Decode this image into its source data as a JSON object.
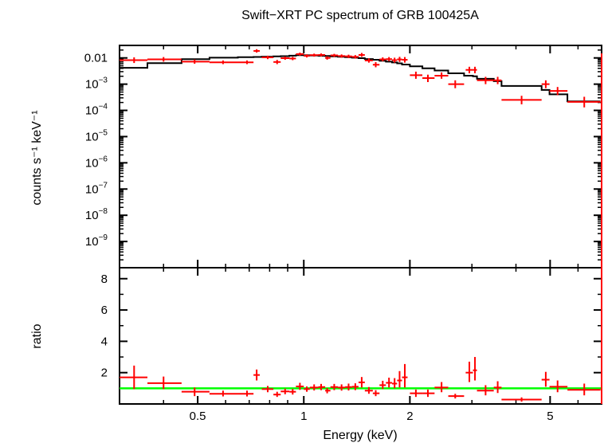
{
  "chart_data": [
    {
      "type": "scatter",
      "title": "Swift−XRT PC spectrum of GRB 100425A",
      "ylabel": "counts s⁻¹ keV⁻¹",
      "xscale": "log",
      "yscale": "log",
      "xlim": [
        0.3,
        7.0
      ],
      "ylim": [
        1e-10,
        0.03
      ],
      "x_ticks": [
        {
          "value": 0.5,
          "label": "0.5"
        },
        {
          "value": 1,
          "label": "1"
        },
        {
          "value": 2,
          "label": "2"
        },
        {
          "value": 5,
          "label": "5"
        }
      ],
      "y_ticks": [
        {
          "value": 0.01,
          "label": "0.01"
        },
        {
          "value": 0.001,
          "base": "10",
          "exp": "−3"
        },
        {
          "value": 0.0001,
          "base": "10",
          "exp": "−4"
        },
        {
          "value": 1e-05,
          "base": "10",
          "exp": "−5"
        },
        {
          "value": 1e-06,
          "base": "10",
          "exp": "−6"
        },
        {
          "value": 1e-07,
          "base": "10",
          "exp": "−7"
        },
        {
          "value": 1e-08,
          "base": "10",
          "exp": "−8"
        },
        {
          "value": 1e-09,
          "base": "10",
          "exp": "−9"
        }
      ],
      "series": [
        {
          "color": "#ff0000",
          "points": [
            {
              "x": 0.33,
              "x_lo": 0.3,
              "x_hi": 0.36,
              "y": 0.0082,
              "y_lo": 0.0064,
              "y_hi": 0.0105
            },
            {
              "x": 0.4,
              "x_lo": 0.36,
              "x_hi": 0.45,
              "y": 0.0088,
              "y_lo": 0.0072,
              "y_hi": 0.0108
            },
            {
              "x": 0.49,
              "x_lo": 0.45,
              "x_hi": 0.54,
              "y": 0.0072,
              "y_lo": 0.006,
              "y_hi": 0.0087
            },
            {
              "x": 0.59,
              "x_lo": 0.54,
              "x_hi": 0.65,
              "y": 0.0068,
              "y_lo": 0.0058,
              "y_hi": 0.008
            },
            {
              "x": 0.69,
              "x_lo": 0.65,
              "x_hi": 0.72,
              "y": 0.0068,
              "y_lo": 0.0058,
              "y_hi": 0.008
            },
            {
              "x": 0.735,
              "x_lo": 0.72,
              "x_hi": 0.75,
              "y": 0.0185,
              "y_lo": 0.016,
              "y_hi": 0.0215
            },
            {
              "x": 0.79,
              "x_lo": 0.76,
              "x_hi": 0.82,
              "y": 0.0105,
              "y_lo": 0.009,
              "y_hi": 0.0122
            },
            {
              "x": 0.84,
              "x_lo": 0.82,
              "x_hi": 0.86,
              "y": 0.007,
              "y_lo": 0.0058,
              "y_hi": 0.0084
            },
            {
              "x": 0.885,
              "x_lo": 0.86,
              "x_hi": 0.91,
              "y": 0.0098,
              "y_lo": 0.0085,
              "y_hi": 0.0113
            },
            {
              "x": 0.93,
              "x_lo": 0.91,
              "x_hi": 0.95,
              "y": 0.0095,
              "y_lo": 0.0082,
              "y_hi": 0.011
            },
            {
              "x": 0.975,
              "x_lo": 0.95,
              "x_hi": 1.0,
              "y": 0.014,
              "y_lo": 0.0122,
              "y_hi": 0.016
            },
            {
              "x": 1.02,
              "x_lo": 1.0,
              "x_hi": 1.04,
              "y": 0.012,
              "y_lo": 0.0104,
              "y_hi": 0.0138
            },
            {
              "x": 1.07,
              "x_lo": 1.04,
              "x_hi": 1.1,
              "y": 0.0128,
              "y_lo": 0.0112,
              "y_hi": 0.0146
            },
            {
              "x": 1.12,
              "x_lo": 1.1,
              "x_hi": 1.15,
              "y": 0.013,
              "y_lo": 0.0114,
              "y_hi": 0.0148
            },
            {
              "x": 1.165,
              "x_lo": 1.15,
              "x_hi": 1.19,
              "y": 0.01,
              "y_lo": 0.0086,
              "y_hi": 0.0116
            },
            {
              "x": 1.22,
              "x_lo": 1.19,
              "x_hi": 1.25,
              "y": 0.0125,
              "y_lo": 0.0109,
              "y_hi": 0.0143
            },
            {
              "x": 1.28,
              "x_lo": 1.25,
              "x_hi": 1.31,
              "y": 0.0118,
              "y_lo": 0.0102,
              "y_hi": 0.0136
            },
            {
              "x": 1.34,
              "x_lo": 1.31,
              "x_hi": 1.37,
              "y": 0.0115,
              "y_lo": 0.0099,
              "y_hi": 0.0133
            },
            {
              "x": 1.4,
              "x_lo": 1.37,
              "x_hi": 1.43,
              "y": 0.011,
              "y_lo": 0.0094,
              "y_hi": 0.0128
            },
            {
              "x": 1.46,
              "x_lo": 1.43,
              "x_hi": 1.49,
              "y": 0.013,
              "y_lo": 0.011,
              "y_hi": 0.0155
            },
            {
              "x": 1.53,
              "x_lo": 1.49,
              "x_hi": 1.57,
              "y": 0.008,
              "y_lo": 0.0066,
              "y_hi": 0.0097
            },
            {
              "x": 1.6,
              "x_lo": 1.57,
              "x_hi": 1.64,
              "y": 0.0055,
              "y_lo": 0.0044,
              "y_hi": 0.0069
            },
            {
              "x": 1.675,
              "x_lo": 1.64,
              "x_hi": 1.71,
              "y": 0.0088,
              "y_lo": 0.0074,
              "y_hi": 0.0105
            },
            {
              "x": 1.745,
              "x_lo": 1.71,
              "x_hi": 1.78,
              "y": 0.009,
              "y_lo": 0.0075,
              "y_hi": 0.0108
            },
            {
              "x": 1.81,
              "x_lo": 1.78,
              "x_hi": 1.84,
              "y": 0.0082,
              "y_lo": 0.0066,
              "y_hi": 0.0102
            },
            {
              "x": 1.87,
              "x_lo": 1.84,
              "x_hi": 1.9,
              "y": 0.0088,
              "y_lo": 0.007,
              "y_hi": 0.011
            },
            {
              "x": 1.935,
              "x_lo": 1.9,
              "x_hi": 1.97,
              "y": 0.0085,
              "y_lo": 0.0066,
              "y_hi": 0.0108
            },
            {
              "x": 2.08,
              "x_lo": 2.0,
              "x_hi": 2.17,
              "y": 0.0022,
              "y_lo": 0.0016,
              "y_hi": 0.003
            },
            {
              "x": 2.25,
              "x_lo": 2.17,
              "x_hi": 2.35,
              "y": 0.0017,
              "y_lo": 0.0012,
              "y_hi": 0.0023
            },
            {
              "x": 2.46,
              "x_lo": 2.35,
              "x_hi": 2.57,
              "y": 0.0021,
              "y_lo": 0.0016,
              "y_hi": 0.0028
            },
            {
              "x": 2.69,
              "x_lo": 2.57,
              "x_hi": 2.85,
              "y": 0.001,
              "y_lo": 0.0007,
              "y_hi": 0.0014
            },
            {
              "x": 2.95,
              "x_lo": 2.88,
              "x_hi": 3.02,
              "y": 0.0035,
              "y_lo": 0.0026,
              "y_hi": 0.0046
            },
            {
              "x": 3.06,
              "x_lo": 3.02,
              "x_hi": 3.1,
              "y": 0.0035,
              "y_lo": 0.0026,
              "y_hi": 0.0046
            },
            {
              "x": 3.28,
              "x_lo": 3.1,
              "x_hi": 3.46,
              "y": 0.0014,
              "y_lo": 0.001,
              "y_hi": 0.0019
            },
            {
              "x": 3.55,
              "x_lo": 3.46,
              "x_hi": 3.64,
              "y": 0.0014,
              "y_lo": 0.001,
              "y_hi": 0.0019
            },
            {
              "x": 4.15,
              "x_lo": 3.64,
              "x_hi": 4.73,
              "y": 0.00025,
              "y_lo": 0.00017,
              "y_hi": 0.00036
            },
            {
              "x": 4.86,
              "x_lo": 4.73,
              "x_hi": 4.98,
              "y": 0.001,
              "y_lo": 0.0007,
              "y_hi": 0.0014
            },
            {
              "x": 5.25,
              "x_lo": 4.98,
              "x_hi": 5.6,
              "y": 0.00055,
              "y_lo": 0.00038,
              "y_hi": 0.00078
            },
            {
              "x": 6.25,
              "x_lo": 5.6,
              "x_hi": 6.95,
              "y": 0.00021,
              "y_lo": 0.00013,
              "y_hi": 0.00033
            }
          ]
        },
        {
          "color": "#000000",
          "style": "step",
          "edges": [
            0.3,
            0.36,
            0.45,
            0.54,
            0.65,
            0.72,
            0.76,
            0.82,
            0.86,
            0.91,
            0.95,
            1.0,
            1.04,
            1.1,
            1.15,
            1.19,
            1.25,
            1.31,
            1.37,
            1.43,
            1.49,
            1.57,
            1.64,
            1.71,
            1.78,
            1.84,
            1.9,
            2.0,
            2.17,
            2.35,
            2.57,
            2.85,
            3.02,
            3.1,
            3.46,
            3.64,
            4.73,
            4.98,
            5.6,
            6.95
          ],
          "values": [
            0.0042,
            0.0063,
            0.009,
            0.0102,
            0.0107,
            0.0109,
            0.0112,
            0.0114,
            0.0117,
            0.0122,
            0.0127,
            0.0126,
            0.0124,
            0.0121,
            0.0119,
            0.0115,
            0.0111,
            0.0107,
            0.0102,
            0.0098,
            0.0091,
            0.0085,
            0.0078,
            0.0072,
            0.0067,
            0.0062,
            0.0056,
            0.0048,
            0.004,
            0.0033,
            0.0026,
            0.0021,
            0.002,
            0.0016,
            0.0013,
            0.00085,
            0.0006,
            0.00041,
            0.00022
          ]
        }
      ]
    },
    {
      "type": "scatter",
      "xlabel": "Energy (keV)",
      "ylabel": "ratio",
      "xscale": "log",
      "xlim": [
        0.3,
        7.0
      ],
      "ylim": [
        0,
        8.7
      ],
      "y_ticks": [
        {
          "value": 2,
          "label": "2"
        },
        {
          "value": 4,
          "label": "4"
        },
        {
          "value": 6,
          "label": "6"
        },
        {
          "value": 8,
          "label": "8"
        }
      ],
      "reference_line": {
        "y": 1,
        "color": "#00ff00"
      },
      "series": [
        {
          "color": "#ff0000",
          "points": [
            {
              "x": 0.33,
              "x_lo": 0.3,
              "x_hi": 0.36,
              "y": 1.7,
              "y_lo": 0.95,
              "y_hi": 2.45
            },
            {
              "x": 0.4,
              "x_lo": 0.36,
              "x_hi": 0.45,
              "y": 1.33,
              "y_lo": 0.95,
              "y_hi": 1.75
            },
            {
              "x": 0.49,
              "x_lo": 0.45,
              "x_hi": 0.54,
              "y": 0.78,
              "y_lo": 0.5,
              "y_hi": 1.05
            },
            {
              "x": 0.59,
              "x_lo": 0.54,
              "x_hi": 0.65,
              "y": 0.65,
              "y_lo": 0.48,
              "y_hi": 0.85
            },
            {
              "x": 0.69,
              "x_lo": 0.65,
              "x_hi": 0.72,
              "y": 0.65,
              "y_lo": 0.48,
              "y_hi": 0.85
            },
            {
              "x": 0.735,
              "x_lo": 0.72,
              "x_hi": 0.75,
              "y": 1.85,
              "y_lo": 1.5,
              "y_hi": 2.2
            },
            {
              "x": 0.79,
              "x_lo": 0.76,
              "x_hi": 0.82,
              "y": 0.95,
              "y_lo": 0.75,
              "y_hi": 1.15
            },
            {
              "x": 0.84,
              "x_lo": 0.82,
              "x_hi": 0.86,
              "y": 0.6,
              "y_lo": 0.45,
              "y_hi": 0.78
            },
            {
              "x": 0.885,
              "x_lo": 0.86,
              "x_hi": 0.91,
              "y": 0.8,
              "y_lo": 0.62,
              "y_hi": 0.98
            },
            {
              "x": 0.93,
              "x_lo": 0.91,
              "x_hi": 0.95,
              "y": 0.78,
              "y_lo": 0.6,
              "y_hi": 0.96
            },
            {
              "x": 0.975,
              "x_lo": 0.95,
              "x_hi": 1.0,
              "y": 1.12,
              "y_lo": 0.9,
              "y_hi": 1.35
            },
            {
              "x": 1.02,
              "x_lo": 1.0,
              "x_hi": 1.04,
              "y": 0.95,
              "y_lo": 0.78,
              "y_hi": 1.12
            },
            {
              "x": 1.07,
              "x_lo": 1.04,
              "x_hi": 1.1,
              "y": 1.05,
              "y_lo": 0.86,
              "y_hi": 1.25
            },
            {
              "x": 1.12,
              "x_lo": 1.1,
              "x_hi": 1.15,
              "y": 1.08,
              "y_lo": 0.88,
              "y_hi": 1.28
            },
            {
              "x": 1.165,
              "x_lo": 1.15,
              "x_hi": 1.19,
              "y": 0.85,
              "y_lo": 0.68,
              "y_hi": 1.02
            },
            {
              "x": 1.22,
              "x_lo": 1.19,
              "x_hi": 1.25,
              "y": 1.08,
              "y_lo": 0.88,
              "y_hi": 1.28
            },
            {
              "x": 1.28,
              "x_lo": 1.25,
              "x_hi": 1.31,
              "y": 1.05,
              "y_lo": 0.85,
              "y_hi": 1.25
            },
            {
              "x": 1.34,
              "x_lo": 1.31,
              "x_hi": 1.37,
              "y": 1.08,
              "y_lo": 0.86,
              "y_hi": 1.3
            },
            {
              "x": 1.4,
              "x_lo": 1.37,
              "x_hi": 1.43,
              "y": 1.1,
              "y_lo": 0.88,
              "y_hi": 1.32
            },
            {
              "x": 1.46,
              "x_lo": 1.43,
              "x_hi": 1.49,
              "y": 1.38,
              "y_lo": 1.05,
              "y_hi": 1.72
            },
            {
              "x": 1.53,
              "x_lo": 1.49,
              "x_hi": 1.57,
              "y": 0.85,
              "y_lo": 0.65,
              "y_hi": 1.08
            },
            {
              "x": 1.6,
              "x_lo": 1.57,
              "x_hi": 1.64,
              "y": 0.68,
              "y_lo": 0.5,
              "y_hi": 0.88
            },
            {
              "x": 1.675,
              "x_lo": 1.64,
              "x_hi": 1.71,
              "y": 1.2,
              "y_lo": 0.95,
              "y_hi": 1.48
            },
            {
              "x": 1.745,
              "x_lo": 1.71,
              "x_hi": 1.78,
              "y": 1.35,
              "y_lo": 1.05,
              "y_hi": 1.68
            },
            {
              "x": 1.81,
              "x_lo": 1.78,
              "x_hi": 1.84,
              "y": 1.3,
              "y_lo": 1.0,
              "y_hi": 1.65
            },
            {
              "x": 1.87,
              "x_lo": 1.84,
              "x_hi": 1.9,
              "y": 1.5,
              "y_lo": 1.05,
              "y_hi": 2.1
            },
            {
              "x": 1.935,
              "x_lo": 1.9,
              "x_hi": 1.97,
              "y": 1.7,
              "y_lo": 1.05,
              "y_hi": 2.55
            },
            {
              "x": 2.08,
              "x_lo": 2.0,
              "x_hi": 2.17,
              "y": 0.68,
              "y_lo": 0.45,
              "y_hi": 0.92
            },
            {
              "x": 2.25,
              "x_lo": 2.17,
              "x_hi": 2.35,
              "y": 0.68,
              "y_lo": 0.45,
              "y_hi": 0.92
            },
            {
              "x": 2.46,
              "x_lo": 2.35,
              "x_hi": 2.57,
              "y": 1.05,
              "y_lo": 0.75,
              "y_hi": 1.4
            },
            {
              "x": 2.69,
              "x_lo": 2.57,
              "x_hi": 2.85,
              "y": 0.5,
              "y_lo": 0.35,
              "y_hi": 0.65
            },
            {
              "x": 2.95,
              "x_lo": 2.88,
              "x_hi": 3.02,
              "y": 2.0,
              "y_lo": 1.4,
              "y_hi": 2.7
            },
            {
              "x": 3.06,
              "x_lo": 3.02,
              "x_hi": 3.1,
              "y": 2.15,
              "y_lo": 1.5,
              "y_hi": 3.0
            },
            {
              "x": 3.28,
              "x_lo": 3.1,
              "x_hi": 3.46,
              "y": 0.85,
              "y_lo": 0.55,
              "y_hi": 1.2
            },
            {
              "x": 3.55,
              "x_lo": 3.46,
              "x_hi": 3.64,
              "y": 1.05,
              "y_lo": 0.7,
              "y_hi": 1.45
            },
            {
              "x": 4.15,
              "x_lo": 3.64,
              "x_hi": 4.73,
              "y": 0.28,
              "y_lo": 0.15,
              "y_hi": 0.42
            },
            {
              "x": 4.86,
              "x_lo": 4.73,
              "x_hi": 4.98,
              "y": 1.55,
              "y_lo": 1.1,
              "y_hi": 2.05
            },
            {
              "x": 5.25,
              "x_lo": 4.98,
              "x_hi": 5.6,
              "y": 1.1,
              "y_lo": 0.75,
              "y_hi": 1.5
            },
            {
              "x": 6.25,
              "x_lo": 5.6,
              "x_hi": 6.95,
              "y": 0.9,
              "y_lo": 0.55,
              "y_hi": 1.3
            }
          ]
        }
      ]
    }
  ]
}
